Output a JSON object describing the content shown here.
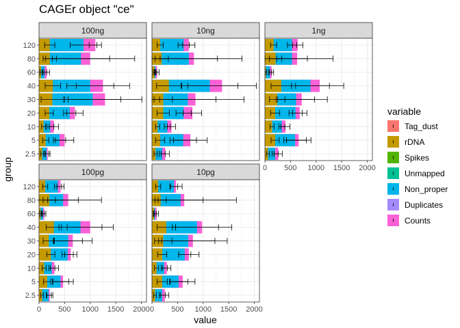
{
  "chart_data": {
    "type": "bar",
    "title": "CAGEr object \"ce\"",
    "xlabel": "value",
    "ylabel": "group",
    "xlim": [
      0,
      2100
    ],
    "xticks": [
      0,
      500,
      1000,
      1500,
      2000
    ],
    "grid": true,
    "legend_title": "variable",
    "legend_position": "right",
    "categories": [
      "2.5",
      "5",
      "10",
      "20",
      "30",
      "40",
      "60",
      "80",
      "120"
    ],
    "variables": [
      {
        "name": "Tag_dust",
        "color": "#F8766D"
      },
      {
        "name": "rDNA",
        "color": "#C49A00"
      },
      {
        "name": "Spikes",
        "color": "#53B400"
      },
      {
        "name": "Unmapped",
        "color": "#00C094"
      },
      {
        "name": "Non_proper",
        "color": "#00B6EB"
      },
      {
        "name": "Duplicates",
        "color": "#A58AFF"
      },
      {
        "name": "Counts",
        "color": "#FB61D7"
      }
    ],
    "panels": [
      {
        "name": "100ng",
        "rDNA": [
          60,
          130,
          90,
          200,
          260,
          270,
          40,
          210,
          210
        ],
        "Non_proper": [
          150,
          400,
          220,
          600,
          1050,
          1000,
          110,
          820,
          870
        ],
        "Counts": [
          170,
          500,
          290,
          700,
          1290,
          1250,
          150,
          1000,
          1100
        ],
        "rDNA_err": [
          30,
          60,
          40,
          80,
          220,
          150,
          20,
          130,
          100
        ],
        "Non_proper_err": [
          40,
          120,
          70,
          120,
          550,
          460,
          40,
          560,
          260
        ],
        "Counts_err": [
          45,
          180,
          90,
          160,
          720,
          520,
          55,
          870,
          120
        ]
      },
      {
        "name": "10ng",
        "rDNA": [
          70,
          160,
          110,
          220,
          220,
          330,
          50,
          190,
          160
        ],
        "Non_proper": [
          200,
          610,
          300,
          620,
          700,
          1130,
          70,
          720,
          620
        ],
        "Counts": [
          260,
          750,
          380,
          790,
          850,
          1370,
          100,
          820,
          720
        ],
        "rDNA_err": [
          30,
          90,
          40,
          120,
          180,
          240,
          25,
          130,
          60
        ],
        "Non_proper_err": [
          60,
          260,
          60,
          150,
          550,
          550,
          25,
          560,
          110
        ],
        "Counts_err": [
          80,
          330,
          80,
          180,
          950,
          670,
          40,
          940,
          120
        ]
      },
      {
        "name": "1ng",
        "rDNA": [
          60,
          200,
          140,
          200,
          240,
          320,
          20,
          210,
          170
        ],
        "Non_proper": [
          200,
          590,
          330,
          600,
          610,
          890,
          100,
          530,
          530
        ],
        "Counts": [
          260,
          660,
          400,
          680,
          720,
          1070,
          130,
          630,
          640
        ],
        "rDNA_err": [
          30,
          80,
          40,
          90,
          150,
          200,
          15,
          120,
          60
        ],
        "Non_proper_err": [
          60,
          220,
          60,
          130,
          360,
          370,
          30,
          300,
          90
        ],
        "Counts_err": [
          80,
          240,
          90,
          140,
          500,
          470,
          40,
          700,
          100
        ]
      },
      {
        "name": "100pg",
        "rDNA": [
          60,
          160,
          100,
          230,
          190,
          290,
          30,
          200,
          120
        ],
        "Non_proper": [
          190,
          420,
          250,
          560,
          570,
          810,
          80,
          470,
          370
        ],
        "Counts": [
          210,
          470,
          300,
          620,
          660,
          1000,
          100,
          570,
          420
        ],
        "rDNA_err": [
          25,
          70,
          40,
          80,
          110,
          150,
          15,
          120,
          50
        ],
        "Non_proper_err": [
          50,
          160,
          60,
          110,
          280,
          420,
          25,
          300,
          70
        ],
        "Counts_err": [
          60,
          200,
          80,
          120,
          380,
          450,
          35,
          650,
          70
        ]
      },
      {
        "name": "10pg",
        "rDNA": [
          60,
          200,
          90,
          200,
          220,
          280,
          40,
          170,
          120
        ],
        "Non_proper": [
          200,
          520,
          240,
          640,
          710,
          880,
          60,
          560,
          430
        ],
        "Counts": [
          250,
          600,
          290,
          720,
          800,
          980,
          90,
          630,
          470
        ],
        "rDNA_err": [
          25,
          100,
          40,
          90,
          170,
          180,
          15,
          110,
          50
        ],
        "Non_proper_err": [
          60,
          180,
          60,
          120,
          520,
          420,
          25,
          440,
          70
        ],
        "Counts_err": [
          80,
          240,
          80,
          200,
          670,
          580,
          35,
          1020,
          120
        ]
      }
    ]
  }
}
